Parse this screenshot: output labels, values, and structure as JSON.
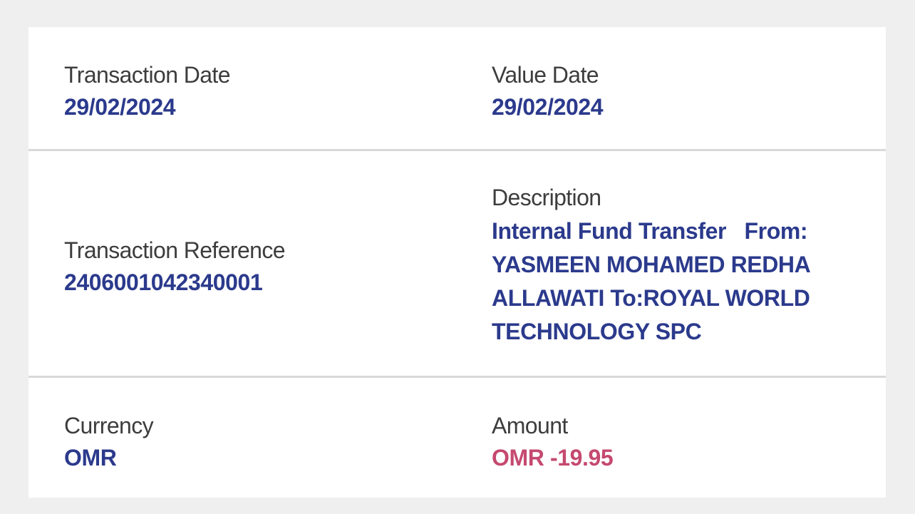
{
  "colors": {
    "page_background": "#efefef",
    "card_background": "#ffffff",
    "label_text": "#3d3d3d",
    "value_text": "#2b3a8c",
    "negative_amount_text": "#c5496f",
    "divider": "#d9d9d9"
  },
  "fields": {
    "transaction_date": {
      "label": "Transaction Date",
      "value": "29/02/2024"
    },
    "value_date": {
      "label": "Value Date",
      "value": "29/02/2024"
    },
    "transaction_reference": {
      "label": "Transaction Reference",
      "value": "2406001042340001"
    },
    "description": {
      "label": "Description",
      "value": "Internal Fund Transfer   From: YASMEEN MOHAMED REDHA ALLAWATI To:ROYAL WORLD TECHNOLOGY SPC"
    },
    "currency": {
      "label": "Currency",
      "value": "OMR"
    },
    "amount": {
      "label": "Amount",
      "value": "OMR -19.95"
    }
  }
}
